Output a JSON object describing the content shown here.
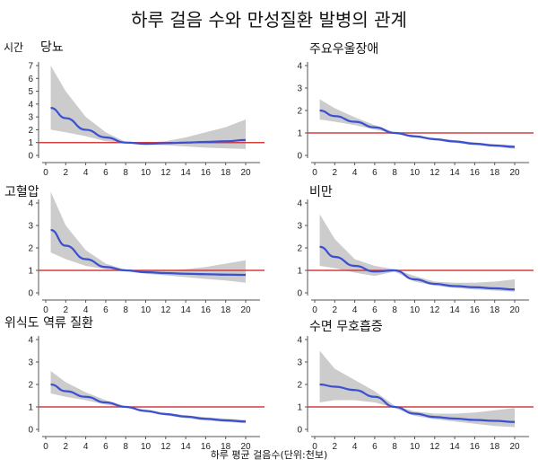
{
  "title": "하루 걸음 수와 만성질환 발병의 관계",
  "y_axis_label": "시간",
  "x_axis_label": "하루 평균 걸음수(단위:천보)",
  "colors": {
    "estimate": "#3a50d0",
    "band": "#cccccc",
    "reference": "#d04040"
  },
  "chart_data": [
    {
      "type": "line",
      "title": "당뇨",
      "xlim": [
        0,
        20
      ],
      "ylim": [
        0,
        7
      ],
      "xticks": [
        0,
        2,
        4,
        6,
        8,
        10,
        12,
        14,
        16,
        18,
        20
      ],
      "yticks": [
        0,
        1,
        2,
        3,
        4,
        5,
        6,
        7
      ],
      "reference": 1,
      "x": [
        0.5,
        2,
        4,
        6,
        8,
        10,
        12,
        14,
        16,
        18,
        20
      ],
      "y": [
        3.7,
        2.9,
        2.0,
        1.4,
        1.0,
        0.9,
        0.95,
        1.0,
        1.05,
        1.1,
        1.2
      ],
      "lower": [
        2.0,
        1.8,
        1.5,
        1.1,
        0.95,
        0.85,
        0.8,
        0.7,
        0.6,
        0.55,
        0.5
      ],
      "upper": [
        7.0,
        5.0,
        3.0,
        1.8,
        1.05,
        1.0,
        1.1,
        1.4,
        1.8,
        2.2,
        2.8
      ]
    },
    {
      "type": "line",
      "title": "주요우울장애",
      "xlim": [
        0,
        20
      ],
      "ylim": [
        0,
        4
      ],
      "xticks": [
        0,
        2,
        4,
        6,
        8,
        10,
        12,
        14,
        16,
        18,
        20
      ],
      "yticks": [
        0,
        1,
        2,
        3,
        4
      ],
      "reference": 1,
      "x": [
        0.5,
        2,
        4,
        6,
        8,
        10,
        12,
        14,
        16,
        18,
        20
      ],
      "y": [
        2.0,
        1.75,
        1.5,
        1.25,
        1.0,
        0.85,
        0.72,
        0.62,
        0.52,
        0.44,
        0.38
      ],
      "lower": [
        1.6,
        1.5,
        1.35,
        1.15,
        0.97,
        0.8,
        0.67,
        0.56,
        0.46,
        0.38,
        0.3
      ],
      "upper": [
        2.5,
        2.1,
        1.7,
        1.35,
        1.03,
        0.9,
        0.78,
        0.68,
        0.58,
        0.5,
        0.45
      ]
    },
    {
      "type": "line",
      "title": "고혈압",
      "xlim": [
        0,
        20
      ],
      "ylim": [
        0,
        4
      ],
      "xticks": [
        0,
        2,
        4,
        6,
        8,
        10,
        12,
        14,
        16,
        18,
        20
      ],
      "yticks": [
        0,
        1,
        2,
        3,
        4
      ],
      "reference": 1,
      "x": [
        0.5,
        2,
        4,
        6,
        8,
        10,
        12,
        14,
        16,
        18,
        20
      ],
      "y": [
        2.8,
        2.1,
        1.5,
        1.15,
        1.0,
        0.92,
        0.88,
        0.85,
        0.83,
        0.81,
        0.8
      ],
      "lower": [
        1.8,
        1.5,
        1.2,
        1.05,
        0.97,
        0.85,
        0.78,
        0.7,
        0.62,
        0.55,
        0.45
      ],
      "upper": [
        4.5,
        3.0,
        1.9,
        1.3,
        1.03,
        1.0,
        1.0,
        1.05,
        1.15,
        1.3,
        1.45
      ]
    },
    {
      "type": "line",
      "title": "비만",
      "xlim": [
        0,
        20
      ],
      "ylim": [
        0,
        4
      ],
      "xticks": [
        0,
        2,
        4,
        6,
        8,
        10,
        12,
        14,
        16,
        18,
        20
      ],
      "yticks": [
        0,
        1,
        2,
        3,
        4
      ],
      "reference": 1,
      "x": [
        0.5,
        2,
        4,
        6,
        8,
        10,
        12,
        14,
        16,
        18,
        20
      ],
      "y": [
        2.05,
        1.6,
        1.2,
        0.95,
        1.0,
        0.6,
        0.4,
        0.3,
        0.25,
        0.2,
        0.15
      ],
      "lower": [
        1.2,
        1.1,
        0.9,
        0.75,
        0.95,
        0.5,
        0.32,
        0.22,
        0.15,
        0.1,
        0.05
      ],
      "upper": [
        3.5,
        2.4,
        1.5,
        1.2,
        1.05,
        0.75,
        0.5,
        0.45,
        0.45,
        0.5,
        0.6
      ]
    },
    {
      "type": "line",
      "title": "위식도 역류 질환",
      "xlim": [
        0,
        20
      ],
      "ylim": [
        0,
        4
      ],
      "xticks": [
        0,
        2,
        4,
        6,
        8,
        10,
        12,
        14,
        16,
        18,
        20
      ],
      "yticks": [
        0,
        1,
        2,
        3,
        4
      ],
      "reference": 1,
      "x": [
        0.5,
        2,
        4,
        6,
        8,
        10,
        12,
        14,
        16,
        18,
        20
      ],
      "y": [
        2.0,
        1.7,
        1.45,
        1.2,
        1.0,
        0.82,
        0.68,
        0.57,
        0.47,
        0.4,
        0.35
      ],
      "lower": [
        1.6,
        1.45,
        1.3,
        1.1,
        0.97,
        0.77,
        0.62,
        0.5,
        0.4,
        0.33,
        0.27
      ],
      "upper": [
        2.6,
        2.1,
        1.65,
        1.3,
        1.03,
        0.88,
        0.74,
        0.63,
        0.54,
        0.48,
        0.42
      ]
    },
    {
      "type": "line",
      "title": "수면 무호흡증",
      "xlim": [
        0,
        20
      ],
      "ylim": [
        0,
        4
      ],
      "xticks": [
        0,
        2,
        4,
        6,
        8,
        10,
        12,
        14,
        16,
        18,
        20
      ],
      "yticks": [
        0,
        1,
        2,
        3,
        4
      ],
      "reference": 1,
      "x": [
        0.5,
        2,
        4,
        6,
        8,
        10,
        12,
        14,
        16,
        18,
        20
      ],
      "y": [
        2.0,
        1.9,
        1.75,
        1.45,
        1.0,
        0.7,
        0.55,
        0.48,
        0.42,
        0.38,
        0.33
      ],
      "lower": [
        1.2,
        1.3,
        1.3,
        1.2,
        0.95,
        0.6,
        0.45,
        0.35,
        0.25,
        0.15,
        0.1
      ],
      "upper": [
        3.5,
        2.7,
        2.2,
        1.7,
        1.05,
        0.8,
        0.7,
        0.7,
        0.75,
        0.85,
        0.95
      ]
    }
  ]
}
